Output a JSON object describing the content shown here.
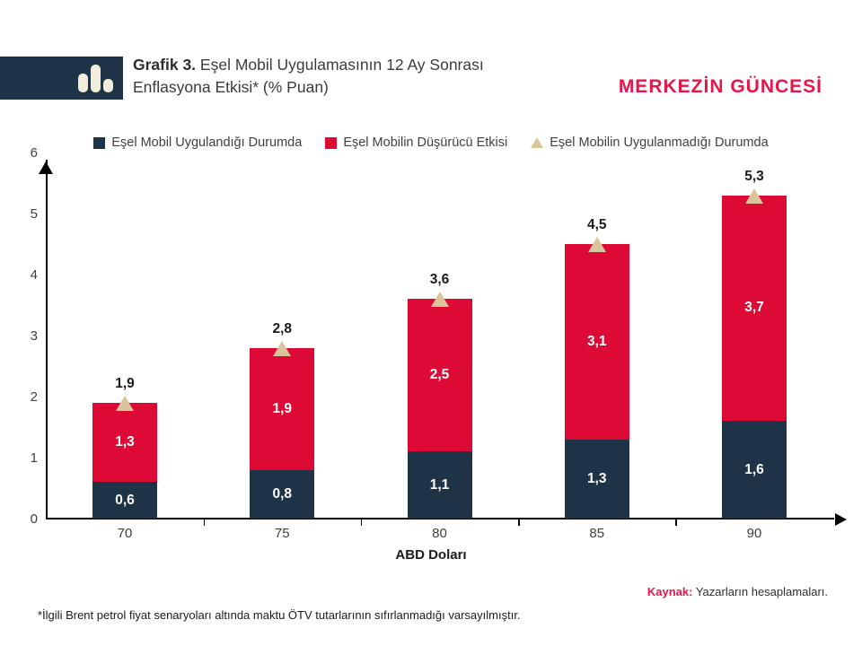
{
  "header": {
    "title_bold": "Grafik 3.",
    "title_rest": " Eşel Mobil Uygulamasının 12 Ay Sonrası",
    "title_line2": "Enflasyona Etkisi* (% Puan)",
    "brand": "MERKEZİN GÜNCESİ"
  },
  "legend": {
    "items": [
      {
        "label": "Eşel Mobil Uygulandığı Durumda",
        "marker": "square",
        "color": "#1e3346"
      },
      {
        "label": "Eşel Mobilin Düşürücü Etkisi",
        "marker": "square",
        "color": "#dc0a34"
      },
      {
        "label": "Eşel Mobilin Uygulanmadığı Durumda",
        "marker": "triangle",
        "color": "#d9c49c"
      }
    ]
  },
  "chart_data": {
    "type": "bar",
    "stacked": true,
    "title": "Grafik 3. Eşel Mobil Uygulamasının 12 Ay Sonrası Enflasyona Etkisi* (% Puan)",
    "categories": [
      "70",
      "75",
      "80",
      "85",
      "90"
    ],
    "series": [
      {
        "name": "Eşel Mobil Uygulandığı Durumda",
        "color": "#1e3346",
        "values": [
          0.6,
          0.8,
          1.1,
          1.3,
          1.6
        ],
        "labels": [
          "0,6",
          "0,8",
          "1,1",
          "1,3",
          "1,6"
        ]
      },
      {
        "name": "Eşel Mobilin Düşürücü Etkisi",
        "color": "#dc0a34",
        "values": [
          1.3,
          1.9,
          2.5,
          3.1,
          3.7
        ],
        "labels": [
          "1,3",
          "1,9",
          "2,5",
          "3,1",
          "3,7"
        ]
      }
    ],
    "totals": {
      "name": "Eşel Mobilin Uygulanmadığı Durumda",
      "marker": "triangle",
      "color": "#d9c49c",
      "values": [
        1.9,
        2.8,
        3.6,
        4.5,
        5.3
      ],
      "labels": [
        "1,9",
        "2,8",
        "3,6",
        "4,5",
        "5,3"
      ]
    },
    "xlabel": "ABD Doları",
    "ylabel": "",
    "ylim": [
      0,
      6
    ],
    "yticks": [
      0,
      1,
      2,
      3,
      4,
      5,
      6
    ],
    "grid": false,
    "legend_position": "top"
  },
  "footer": {
    "source_label": "Kaynak:",
    "source_text": " Yazarların hesaplamaları.",
    "footnote": "*İlgili Brent petrol fiyat senaryoları altında maktu ÖTV tutarlarının sıfırlanmadığı varsayılmıştır."
  }
}
